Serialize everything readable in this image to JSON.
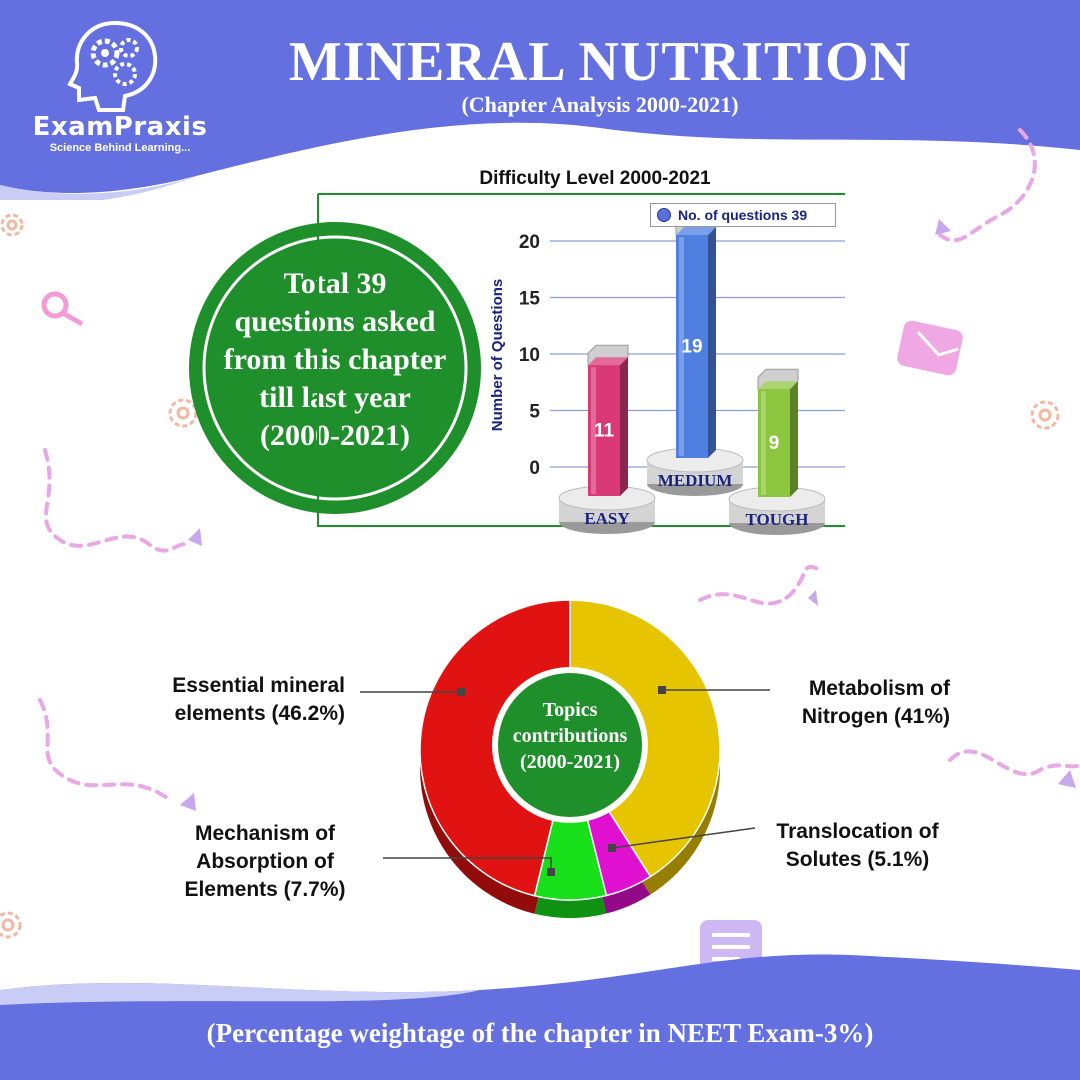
{
  "brand": {
    "name": "ExamPraxis",
    "tagline": "Science Behind Learning..."
  },
  "header": {
    "title": "MINERAL NUTRITION",
    "subtitle": "(Chapter Analysis 2000-2021)"
  },
  "summary": {
    "lines": [
      "Total 39",
      "questions asked",
      "from this chapter",
      "till last year",
      "(2000-2021)"
    ]
  },
  "footer": {
    "text": "(Percentage weightage of the chapter in NEET Exam-3%)"
  },
  "colors": {
    "brand": "#6470e0",
    "green": "#1e8f2a",
    "easy": "#d93a75",
    "medium": "#4f7fe0",
    "tough": "#8cc63f",
    "red": "#e01212",
    "yellow": "#e6c400",
    "lime": "#17e01a",
    "magenta": "#e010d0"
  },
  "icons": [
    "brain-gears-icon",
    "search-icon",
    "gear-icon",
    "mail-icon",
    "chat-icon",
    "arrow-icon"
  ],
  "chart_data": [
    {
      "type": "bar",
      "title": "Difficulty Level 2000-2021",
      "ylabel": "Number of Questions",
      "xlabel": "",
      "categories": [
        "EASY",
        "MEDIUM",
        "TOUGH"
      ],
      "series": [
        {
          "name": "No. of questions 39",
          "values": [
            11,
            19,
            9
          ]
        }
      ],
      "yticks": [
        0,
        5,
        10,
        15,
        20
      ],
      "ylim": [
        0,
        20
      ],
      "grid": true,
      "legend": "top-right"
    },
    {
      "type": "pie",
      "title": "",
      "center_label": [
        "Topics",
        "contributions",
        "(2000-2021)"
      ],
      "slices": [
        {
          "label": [
            "Metabolism of",
            "Nitrogen (41%)"
          ],
          "value": 41,
          "color": "#e6c400"
        },
        {
          "label": [
            "Translocation of",
            "Solutes (5.1%)"
          ],
          "value": 5.1,
          "color": "#e010d0"
        },
        {
          "label": [
            "Mechanism of",
            "Absorption of",
            "Elements (7.7%)"
          ],
          "value": 7.7,
          "color": "#17e01a"
        },
        {
          "label": [
            "Essential mineral",
            "elements (46.2%)"
          ],
          "value": 46.2,
          "color": "#e01212"
        }
      ]
    }
  ]
}
